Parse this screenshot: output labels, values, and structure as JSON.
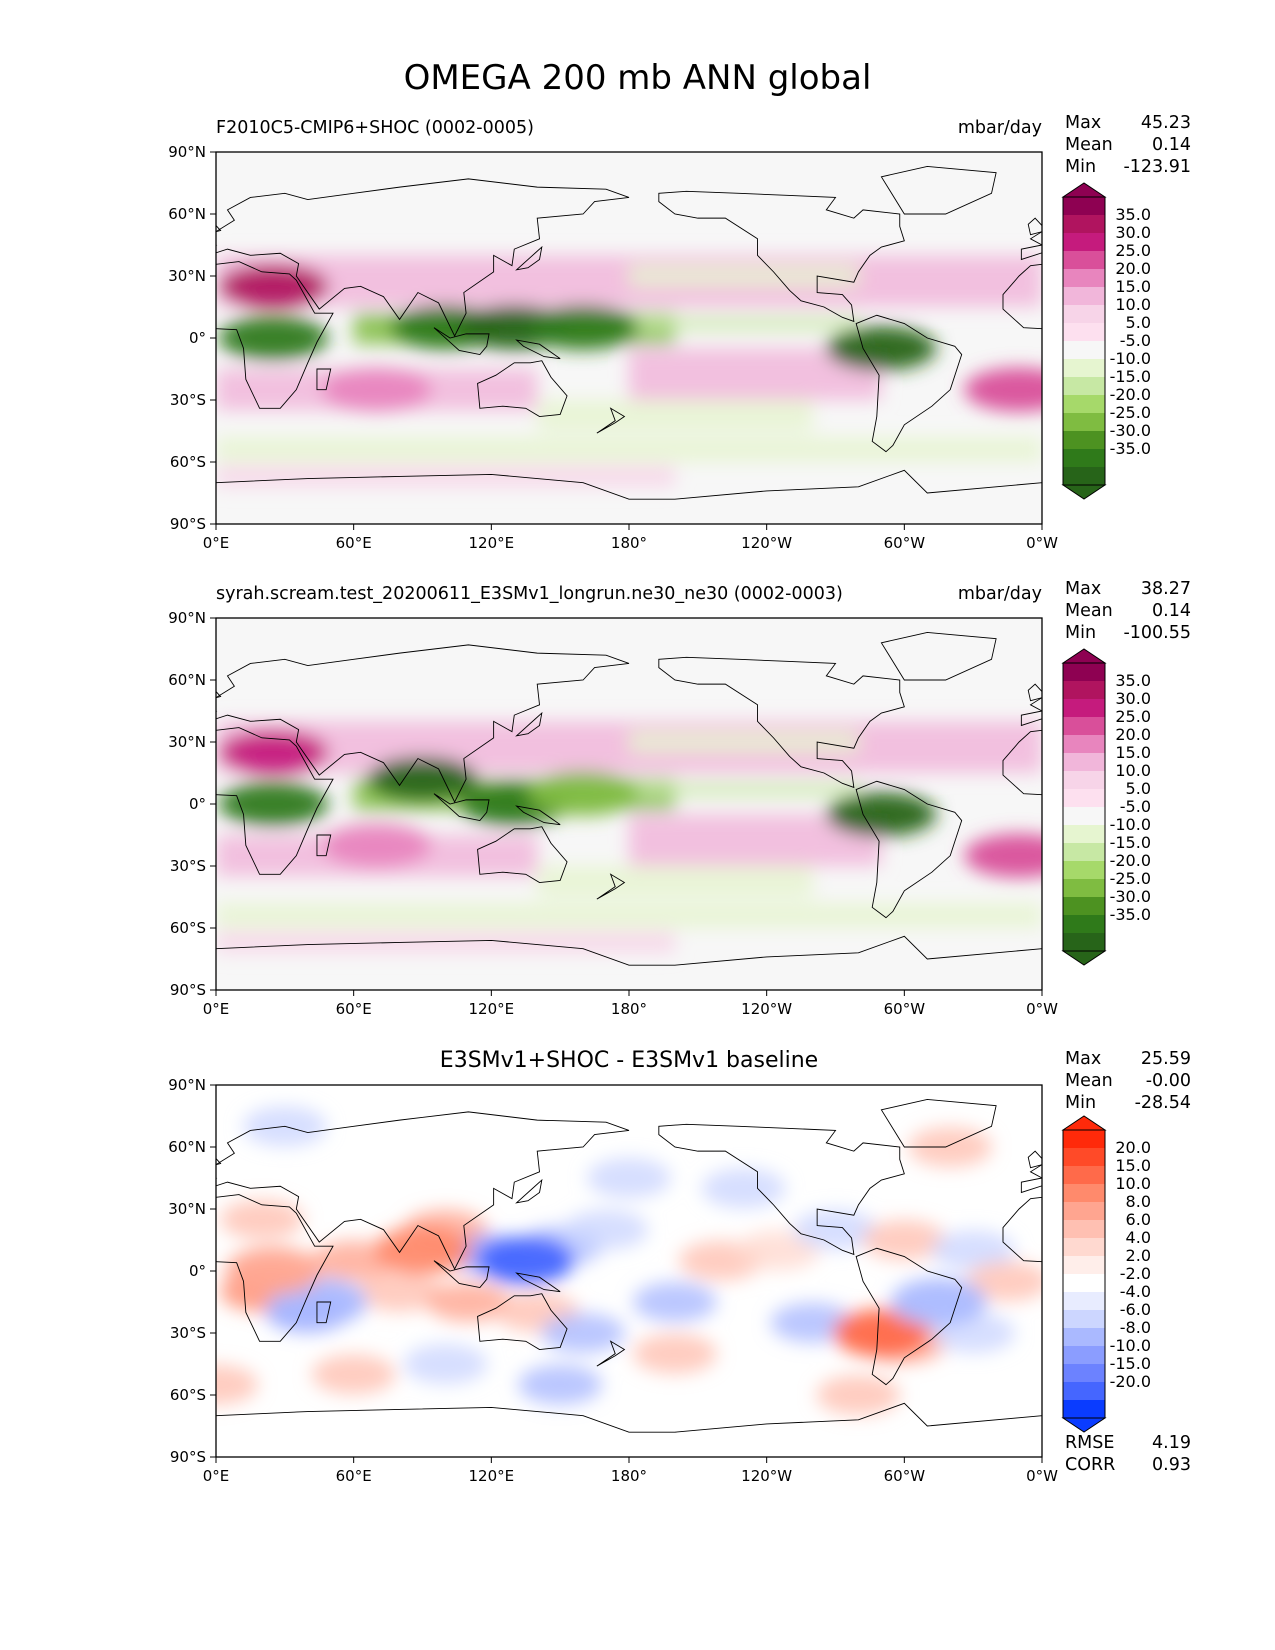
{
  "figure": {
    "title": "OMEGA 200 mb ANN global"
  },
  "axes": {
    "lat_ticks": [
      "90°N",
      "60°N",
      "30°N",
      "0°",
      "30°S",
      "60°S",
      "90°S"
    ],
    "lon_ticks": [
      "0°E",
      "60°E",
      "120°E",
      "180°",
      "120°W",
      "60°W",
      "0°W"
    ]
  },
  "chart_data": [
    {
      "type": "heatmap",
      "projection": "equirectangular",
      "title_left": "F2010C5-CMIP6+SHOC (0002-0005)",
      "title_right": "mbar/day",
      "units": "mbar/day",
      "stats": {
        "max_label": "Max",
        "max": "45.23",
        "mean_label": "Mean",
        "mean": "0.14",
        "min_label": "Min",
        "min": "-123.91"
      },
      "colorbar": {
        "labels": [
          "35.0",
          "30.0",
          "25.0",
          "20.0",
          "15.0",
          "10.0",
          "5.0",
          "-5.0",
          "-10.0",
          "-15.0",
          "-20.0",
          "-25.0",
          "-30.0",
          "-35.0"
        ],
        "colors": [
          "#8e0152",
          "#b0145f",
          "#c51b7d",
          "#d94f9a",
          "#e885be",
          "#f1b6da",
          "#f7d4e8",
          "#fde0ef",
          "#f7f7f7",
          "#e6f5d0",
          "#c7e8a4",
          "#a6d96a",
          "#7fbc41",
          "#4d9221",
          "#2f7a1a",
          "#276419"
        ]
      },
      "x_range": [
        0,
        360
      ],
      "y_range": [
        -90,
        90
      ],
      "features": [
        {
          "lon": 25,
          "lat": 25,
          "v": 32
        },
        {
          "lon": 25,
          "lat": 0,
          "v": -30
        },
        {
          "lon": 100,
          "lat": 5,
          "v": -30
        },
        {
          "lon": 130,
          "lat": 5,
          "v": -38
        },
        {
          "lon": 160,
          "lat": 5,
          "v": -28
        },
        {
          "lon": 70,
          "lat": -25,
          "v": 18
        },
        {
          "lon": 290,
          "lat": -5,
          "v": -38
        },
        {
          "lon": 350,
          "lat": -25,
          "v": 22
        }
      ]
    },
    {
      "type": "heatmap",
      "projection": "equirectangular",
      "title_left": "syrah.scream.test_20200611_E3SMv1_longrun.ne30_ne30 (0002-0003)",
      "title_right": "mbar/day",
      "units": "mbar/day",
      "stats": {
        "max_label": "Max",
        "max": "38.27",
        "mean_label": "Mean",
        "mean": "0.14",
        "min_label": "Min",
        "min": "-100.55"
      },
      "colorbar": {
        "labels": [
          "35.0",
          "30.0",
          "25.0",
          "20.0",
          "15.0",
          "10.0",
          "5.0",
          "-5.0",
          "-10.0",
          "-15.0",
          "-20.0",
          "-25.0",
          "-30.0",
          "-35.0"
        ],
        "colors": [
          "#8e0152",
          "#b0145f",
          "#c51b7d",
          "#d94f9a",
          "#e885be",
          "#f1b6da",
          "#f7d4e8",
          "#fde0ef",
          "#f7f7f7",
          "#e6f5d0",
          "#c7e8a4",
          "#a6d96a",
          "#7fbc41",
          "#4d9221",
          "#2f7a1a",
          "#276419"
        ]
      },
      "x_range": [
        0,
        360
      ],
      "y_range": [
        -90,
        90
      ],
      "features": [
        {
          "lon": 25,
          "lat": 25,
          "v": 25
        },
        {
          "lon": 25,
          "lat": 0,
          "v": -32
        },
        {
          "lon": 90,
          "lat": 12,
          "v": -35
        },
        {
          "lon": 130,
          "lat": 0,
          "v": -32
        },
        {
          "lon": 160,
          "lat": 5,
          "v": -22
        },
        {
          "lon": 70,
          "lat": -20,
          "v": 16
        },
        {
          "lon": 290,
          "lat": -5,
          "v": -35
        },
        {
          "lon": 350,
          "lat": -25,
          "v": 22
        }
      ]
    },
    {
      "type": "heatmap",
      "projection": "equirectangular",
      "title_center": "E3SMv1+SHOC - E3SMv1 baseline",
      "stats": {
        "max_label": "Max",
        "max": "25.59",
        "mean_label": "Mean",
        "mean": "-0.00",
        "min_label": "Min",
        "min": "-28.54"
      },
      "metrics": {
        "rmse_label": "RMSE",
        "rmse": "4.19",
        "corr_label": "CORR",
        "corr": "0.93"
      },
      "colorbar": {
        "labels": [
          "20.0",
          "15.0",
          "10.0",
          "8.0",
          "6.0",
          "4.0",
          "2.0",
          "-2.0",
          "-4.0",
          "-6.0",
          "-8.0",
          "-10.0",
          "-15.0",
          "-20.0"
        ],
        "colors": [
          "#ff2a0a",
          "#ff4a28",
          "#ff6a4a",
          "#ff8a6c",
          "#ffa590",
          "#ffc0b2",
          "#ffd9d0",
          "#ffeeea",
          "#ffffff",
          "#e8ecff",
          "#ccd6ff",
          "#aab9ff",
          "#8b9dff",
          "#6c82ff",
          "#4566ff",
          "#0a3cff"
        ]
      },
      "x_range": [
        0,
        360
      ],
      "y_range": [
        -90,
        90
      ],
      "features": [
        {
          "lon": 90,
          "lat": 10,
          "v": 12
        },
        {
          "lon": 135,
          "lat": 5,
          "v": -18
        },
        {
          "lon": 45,
          "lat": -15,
          "v": -10
        },
        {
          "lon": 290,
          "lat": -30,
          "v": 14
        },
        {
          "lon": 25,
          "lat": 0,
          "v": 10
        },
        {
          "lon": 315,
          "lat": -15,
          "v": -8
        }
      ]
    }
  ]
}
